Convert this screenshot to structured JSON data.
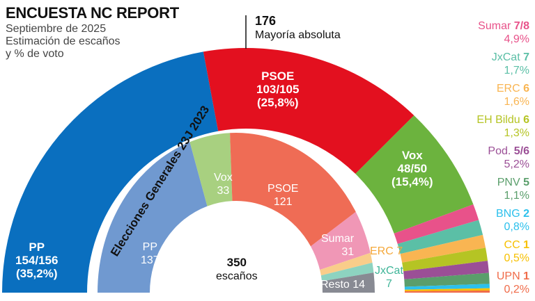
{
  "header": {
    "title": "ENCUESTA NC REPORT",
    "subtitle_lines": [
      "Septiembre de 2025",
      "Estimación de escaños",
      "y % de voto"
    ]
  },
  "majority": {
    "seats": "176",
    "label": "Mayoría absoluta"
  },
  "chart_data": [
    {
      "type": "pie",
      "subtype": "hemicycle",
      "title": "ENCUESTA NC REPORT",
      "total_seats": 350,
      "series": [
        {
          "name": "PP",
          "seats": "154/156",
          "seats_min": 154,
          "seats_max": 156,
          "pct": "35,2%",
          "color": "#0a6fbf"
        },
        {
          "name": "PSOE",
          "seats": "103/105",
          "seats_min": 103,
          "seats_max": 105,
          "pct": "25,8%",
          "color": "#e3101f"
        },
        {
          "name": "Vox",
          "seats": "48/50",
          "seats_min": 48,
          "seats_max": 50,
          "pct": "15,4%",
          "color": "#6cb33e"
        },
        {
          "name": "Sumar",
          "seats": "7/8",
          "seats_min": 7,
          "seats_max": 8,
          "pct": "4,9%",
          "color": "#e8528a"
        },
        {
          "name": "JxCat",
          "seats": "7",
          "seats_min": 7,
          "seats_max": 7,
          "pct": "1,7%",
          "color": "#5bbfa6"
        },
        {
          "name": "ERC",
          "seats": "6",
          "seats_min": 6,
          "seats_max": 6,
          "pct": "1,6%",
          "color": "#f9b552"
        },
        {
          "name": "EH Bildu",
          "seats": "6",
          "seats_min": 6,
          "seats_max": 6,
          "pct": "1,3%",
          "color": "#b5c424"
        },
        {
          "name": "Pod.",
          "seats": "5/6",
          "seats_min": 5,
          "seats_max": 6,
          "pct": "5,2%",
          "color": "#9b4f96"
        },
        {
          "name": "PNV",
          "seats": "5",
          "seats_min": 5,
          "seats_max": 5,
          "pct": "1,1%",
          "color": "#5a9e6b"
        },
        {
          "name": "BNG",
          "seats": "2",
          "seats_min": 2,
          "seats_max": 2,
          "pct": "0,8%",
          "color": "#2cc0ec"
        },
        {
          "name": "CC",
          "seats": "1",
          "seats_min": 1,
          "seats_max": 1,
          "pct": "0,5%",
          "color": "#f7c000"
        },
        {
          "name": "UPN",
          "seats": "1",
          "seats_min": 1,
          "seats_max": 1,
          "pct": "0,2%",
          "color": "#f06c4a"
        }
      ]
    },
    {
      "type": "pie",
      "subtype": "hemicycle",
      "title": "Elecciones Generales 23J 2023",
      "total_seats": 350,
      "center_value": "350",
      "center_label": "escaños",
      "series": [
        {
          "name": "PP",
          "seats": 137,
          "color": "#7099d0"
        },
        {
          "name": "Vox",
          "seats": 33,
          "color": "#a8d080"
        },
        {
          "name": "PSOE",
          "seats": 121,
          "color": "#ef6c55"
        },
        {
          "name": "Sumar",
          "seats": 31,
          "color": "#f097b6"
        },
        {
          "name": "ERC",
          "seats": 7,
          "color": "#f9cd8a"
        },
        {
          "name": "JxCat",
          "seats": 7,
          "color": "#8dd3c0"
        },
        {
          "name": "Resto",
          "seats": 14,
          "color": "#888a93"
        }
      ]
    }
  ]
}
